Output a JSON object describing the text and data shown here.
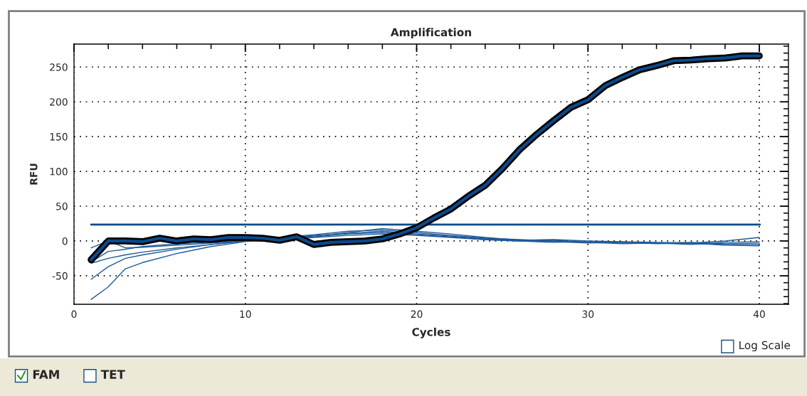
{
  "chart_data": {
    "type": "line",
    "title": "Amplification",
    "xlabel": "Cycles",
    "ylabel": "RFU",
    "xlim": [
      0,
      41.7
    ],
    "xticks": [
      0,
      10,
      20,
      30,
      40
    ],
    "ylim": [
      -91,
      283
    ],
    "yticks": [
      -50,
      0,
      50,
      100,
      150,
      200,
      250
    ],
    "grid": true,
    "legend": false,
    "marker": "none",
    "line_style": "solid",
    "ref_lines": [
      {
        "axis": "y",
        "value": 23.5,
        "color": "#0b4a8b"
      }
    ],
    "annotations": [
      "Log Scale",
      "FAM",
      "TET"
    ],
    "series": [
      {
        "color": "#1f5a99",
        "x": [
          1,
          2,
          3,
          4,
          6,
          8,
          10,
          12,
          14,
          16,
          18,
          20,
          22,
          24,
          26,
          28,
          30,
          32,
          34,
          36,
          38,
          40
        ],
        "values": [
          -84,
          -66,
          -40,
          -31,
          -18,
          -8,
          -1,
          3,
          6,
          10,
          12,
          9,
          6,
          2,
          0,
          -2,
          -1,
          -3,
          -3,
          -4,
          -5,
          -5
        ]
      },
      {
        "color": "#1f5a99",
        "x": [
          1,
          2,
          3,
          4,
          6,
          8,
          10,
          12,
          14,
          16,
          18,
          20,
          22,
          24,
          26,
          28,
          30,
          32,
          34,
          36,
          38,
          40
        ],
        "values": [
          -55,
          -37,
          -25,
          -20,
          -12,
          -5,
          0,
          5,
          9,
          14,
          16,
          12,
          8,
          4,
          2,
          0,
          -2,
          -2,
          -3,
          -2,
          -4,
          -3
        ]
      },
      {
        "color": "#1f5a99",
        "x": [
          1,
          2,
          3,
          4,
          6,
          8,
          10,
          12,
          14,
          16,
          18,
          20,
          22,
          24,
          26,
          28,
          30,
          32,
          34,
          36,
          38,
          40
        ],
        "values": [
          -32,
          -25,
          -20,
          -16,
          -10,
          -5,
          0,
          4,
          7,
          12,
          18,
          14,
          10,
          5,
          1,
          2,
          0,
          -1,
          -2,
          -3,
          0,
          5
        ]
      },
      {
        "color": "#1f5a99",
        "x": [
          1,
          2,
          3,
          4,
          6,
          8,
          10,
          12,
          14,
          16,
          18,
          20,
          22,
          24,
          26,
          28,
          30,
          32,
          34,
          36,
          38,
          40
        ],
        "values": [
          -10,
          0,
          -10,
          -9,
          -6,
          -3,
          0,
          3,
          5,
          8,
          10,
          8,
          5,
          2,
          0,
          -1,
          -3,
          -2,
          -4,
          -3,
          -6,
          -7
        ]
      },
      {
        "color": "#1f5a99",
        "x": [
          1,
          2,
          3,
          4,
          6,
          8,
          10,
          12,
          14,
          16,
          18,
          20,
          22,
          24,
          26,
          28,
          30,
          32,
          34,
          36,
          38,
          40
        ],
        "values": [
          -30,
          -15,
          -12,
          -8,
          -4,
          -2,
          1,
          4,
          8,
          11,
          14,
          10,
          7,
          3,
          1,
          1,
          -2,
          -4,
          -3,
          -5,
          -2,
          -1
        ]
      },
      {
        "color": "#0b4a8b",
        "x": [
          1,
          2,
          3,
          4,
          5,
          6,
          7,
          8,
          9,
          10,
          11,
          12,
          13,
          14,
          15,
          16,
          17,
          18,
          19,
          20,
          21,
          22,
          23,
          24,
          25,
          26,
          27,
          28,
          29,
          30,
          31,
          32,
          33,
          34,
          35,
          36,
          37,
          38,
          39,
          40
        ],
        "values": [
          -27,
          0,
          0,
          -1,
          4,
          0,
          3,
          2,
          5,
          5,
          4,
          1,
          6,
          -5,
          -2,
          -1,
          0,
          3,
          10,
          19,
          33,
          46,
          64,
          80,
          104,
          131,
          153,
          173,
          192,
          203,
          223,
          235,
          246,
          252,
          259,
          260,
          262,
          263,
          266,
          266
        ]
      }
    ]
  }
}
